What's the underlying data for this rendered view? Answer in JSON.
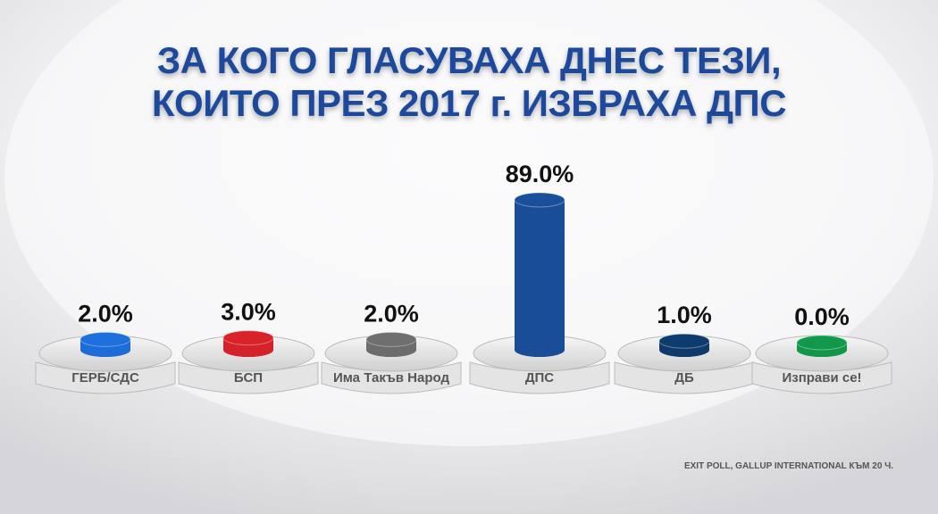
{
  "chart_data": {
    "type": "bar",
    "title": [
      "ЗА КОГО ГЛАСУВАХА ДНЕС ТЕЗИ,",
      "КОИТО ПРЕЗ 2017 г. ИЗБРАХА ДПС"
    ],
    "categories": [
      "ГЕРБ/СДС",
      "БСП",
      "Има Такъв Народ",
      "ДПС",
      "ДБ",
      "Изправи се!"
    ],
    "values": [
      2.0,
      3.0,
      2.0,
      89.0,
      1.0,
      0.0
    ],
    "value_labels": [
      "2.0%",
      "3.0%",
      "2.0%",
      "89.0%",
      "1.0%",
      "0.0%"
    ],
    "colors": [
      "#1f6fdc",
      "#d8232a",
      "#6f6f6f",
      "#1a4f9c",
      "#0e3b6e",
      "#12994c"
    ],
    "source": "EXIT POLL, GALLUP INTERNATIONAL КЪМ 20 Ч."
  }
}
